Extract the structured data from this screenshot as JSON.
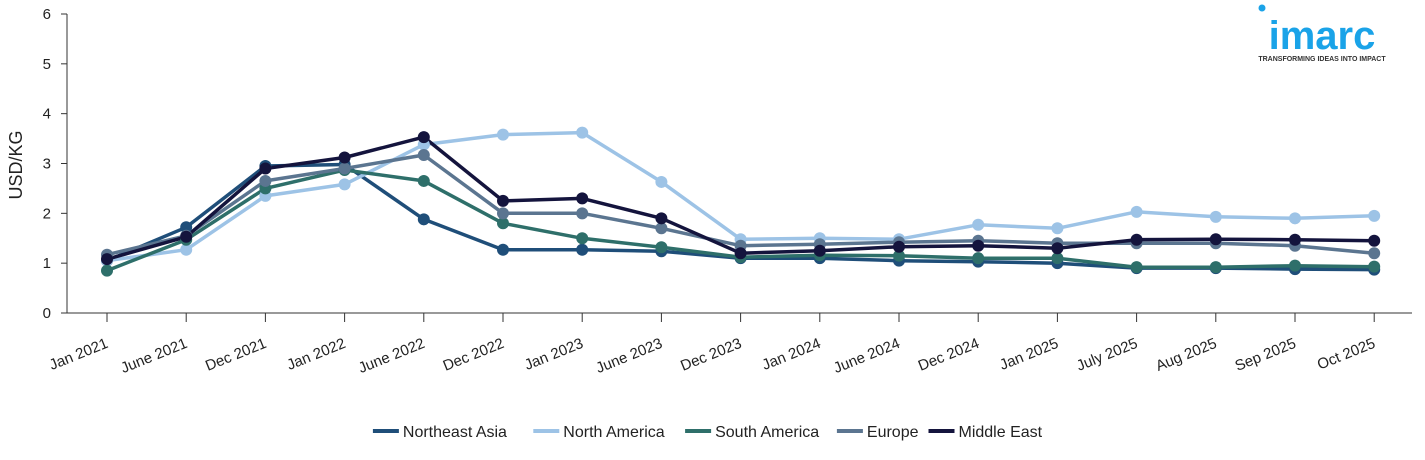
{
  "brand": {
    "name": "imarc",
    "tagline": "TRANSFORMING IDEAS INTO IMPACT",
    "color": "#1aa3e8"
  },
  "chart_data": {
    "type": "line",
    "title": "",
    "xlabel": "",
    "ylabel": "USD/KG",
    "ylim": [
      0,
      6
    ],
    "yticks": [
      "0",
      "1",
      "2",
      "3",
      "4",
      "5",
      "6"
    ],
    "grid": false,
    "legend_position": "bottom-center",
    "categories": [
      "Jan 2021",
      "June 2021",
      "Dec 2021",
      "Jan 2022",
      "June 2022",
      "Dec 2022",
      "Jan 2023",
      "June 2023",
      "Dec 2023",
      "Jan 2024",
      "June 2024",
      "Dec 2024",
      "Jan 2025",
      "July 2025",
      "Aug 2025",
      "Sep 2025",
      "Oct 2025"
    ],
    "series": [
      {
        "name": "Northeast Asia",
        "color": "#1f4e79",
        "values": [
          1.05,
          1.72,
          2.95,
          2.98,
          1.88,
          1.27,
          1.27,
          1.24,
          1.1,
          1.1,
          1.05,
          1.03,
          1.0,
          0.9,
          0.9,
          0.88,
          0.87
        ]
      },
      {
        "name": "North America",
        "color": "#9dc3e6",
        "values": [
          1.05,
          1.27,
          2.35,
          2.58,
          3.38,
          3.58,
          3.62,
          2.63,
          1.48,
          1.5,
          1.48,
          1.77,
          1.7,
          2.03,
          1.93,
          1.9,
          1.95
        ]
      },
      {
        "name": "South America",
        "color": "#2e6f6a",
        "values": [
          0.85,
          1.47,
          2.5,
          2.87,
          2.65,
          1.8,
          1.5,
          1.32,
          1.12,
          1.16,
          1.15,
          1.1,
          1.1,
          0.92,
          0.92,
          0.95,
          0.93
        ]
      },
      {
        "name": "Europe",
        "color": "#5b7590",
        "values": [
          1.17,
          1.55,
          2.65,
          2.9,
          3.17,
          2.0,
          2.0,
          1.7,
          1.35,
          1.38,
          1.42,
          1.45,
          1.4,
          1.4,
          1.4,
          1.35,
          1.2
        ]
      },
      {
        "name": "Middle East",
        "color": "#14143d",
        "values": [
          1.08,
          1.53,
          2.9,
          3.12,
          3.53,
          2.25,
          2.3,
          1.9,
          1.2,
          1.25,
          1.33,
          1.35,
          1.3,
          1.47,
          1.48,
          1.47,
          1.45
        ]
      }
    ]
  }
}
